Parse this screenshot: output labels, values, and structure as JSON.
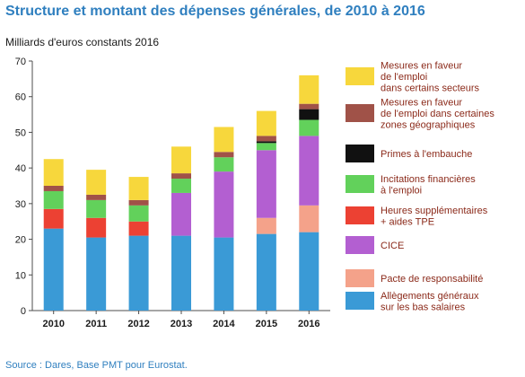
{
  "header": {
    "title": "Structure et montant des dépenses générales, de 2010 à 2016",
    "unit": "Milliards d'euros constants 2016"
  },
  "footer": {
    "source": "Source : Dares, Base PMT pour Eurostat."
  },
  "chart_data": {
    "type": "bar",
    "stacked": true,
    "categories": [
      "2010",
      "2011",
      "2012",
      "2013",
      "2014",
      "2015",
      "2016"
    ],
    "ylim": [
      0,
      70
    ],
    "yticks": [
      0,
      10,
      20,
      30,
      40,
      50,
      60,
      70
    ],
    "ylabel": "Milliards d'euros constants 2016",
    "grid": false,
    "legend_position": "right",
    "series": [
      {
        "name": "Allègements généraux sur les bas salaires",
        "color": "#3a9ad6",
        "values": [
          23,
          20.5,
          21,
          21,
          20.5,
          21.5,
          22
        ]
      },
      {
        "name": "Pacte de responsabilité",
        "color": "#f4a28a",
        "values": [
          0,
          0,
          0,
          0,
          0,
          4.5,
          7.5
        ]
      },
      {
        "name": "CICE",
        "color": "#b35fd1",
        "values": [
          0,
          0,
          0,
          12,
          18.5,
          19,
          19.5
        ]
      },
      {
        "name": "Heures supplémentaires + aides TPE",
        "color": "#ec4133",
        "values": [
          5.5,
          5.5,
          4,
          0,
          0,
          0,
          0
        ]
      },
      {
        "name": "Incitations financières à l'emploi",
        "color": "#62d15b",
        "values": [
          5,
          5,
          4.5,
          4,
          4,
          2,
          4.5
        ]
      },
      {
        "name": "Primes à l'embauche",
        "color": "#111111",
        "values": [
          0,
          0,
          0,
          0,
          0,
          0.5,
          3
        ]
      },
      {
        "name": "Mesures en faveur de l'emploi dans certaines zones géographiques",
        "color": "#a05248",
        "values": [
          1.5,
          1.5,
          1.5,
          1.5,
          1.5,
          1.5,
          1.5
        ]
      },
      {
        "name": "Mesures en faveur de l'emploi dans certains secteurs",
        "color": "#f7d73c",
        "values": [
          7.5,
          7,
          6.5,
          7.5,
          7,
          7,
          8
        ]
      }
    ],
    "legend_lines": [
      [
        "Mesures en faveur",
        "de l'emploi",
        "dans certains secteurs"
      ],
      [
        "Mesures en faveur",
        "de l'emploi dans certaines",
        "zones géographiques"
      ],
      [
        "Primes à l'embauche"
      ],
      [
        "Incitations financières",
        "à l'emploi"
      ],
      [
        "Heures supplémentaires",
        "+ aides TPE"
      ],
      [
        "CICE"
      ],
      [
        "Pacte de responsabilité"
      ],
      [
        "Allègements généraux",
        "sur les bas salaires"
      ]
    ]
  }
}
